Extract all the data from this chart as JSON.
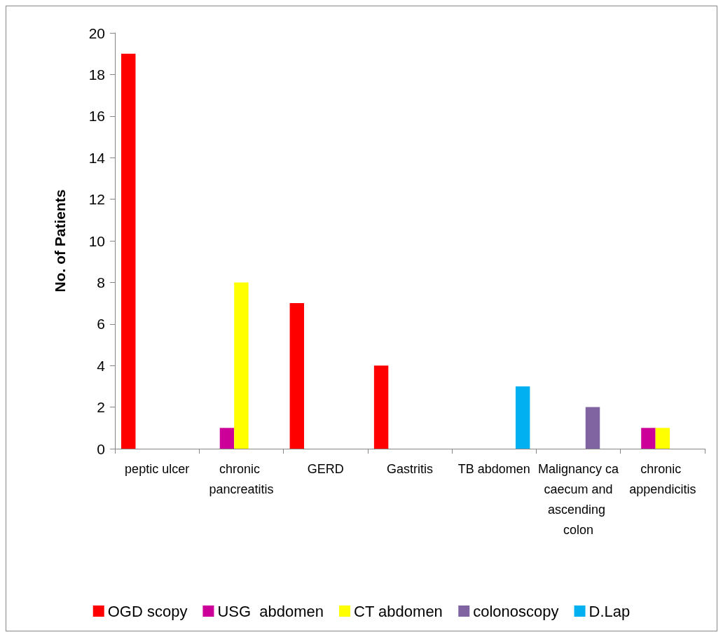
{
  "chart_data": {
    "type": "bar",
    "ylabel": "No. of Patients",
    "categories": [
      "peptic ulcer",
      "chronic pancreatitis",
      "GERD",
      "Gastritis",
      "TB abdomen",
      "Malignancy ca caecum and ascending colon",
      "chronic appendicitis"
    ],
    "series": [
      {
        "name": "OGD scopy",
        "color": "#ff0000",
        "values": [
          19,
          null,
          7,
          4,
          null,
          null,
          null
        ]
      },
      {
        "name": "USG  abdomen",
        "color": "#cc0099",
        "values": [
          null,
          1,
          null,
          null,
          null,
          null,
          1
        ]
      },
      {
        "name": "CT abdomen",
        "color": "#ffff00",
        "values": [
          null,
          8,
          null,
          null,
          null,
          null,
          1
        ]
      },
      {
        "name": "colonoscopy",
        "color": "#8064a2",
        "values": [
          null,
          null,
          null,
          null,
          null,
          2,
          null
        ]
      },
      {
        "name": "D.Lap",
        "color": "#00b0f0",
        "values": [
          null,
          null,
          null,
          null,
          3,
          null,
          null
        ]
      }
    ],
    "ylim": [
      0,
      20
    ],
    "yticks": [
      0,
      2,
      4,
      6,
      8,
      10,
      12,
      14,
      16,
      18,
      20
    ],
    "grid": false,
    "legend": "bottom"
  }
}
